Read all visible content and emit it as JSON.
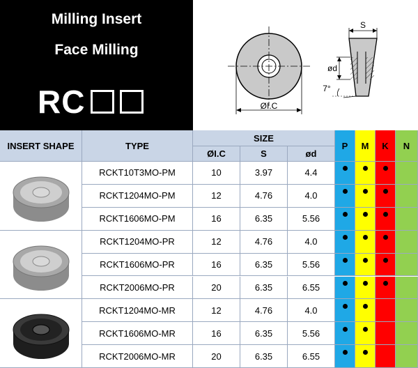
{
  "header": {
    "title_line1": "Milling Insert",
    "title_line2": "Face Milling",
    "code": "RC",
    "drawing_labels": {
      "thickness": "S",
      "hole_diameter": "ød",
      "angle": "7°",
      "ic_diameter": "ØI.C"
    }
  },
  "table": {
    "headers": {
      "insert_shape": "INSERT SHAPE",
      "type": "TYPE",
      "size": "SIZE",
      "ic": "ØI.C",
      "s": "S",
      "d": "ød",
      "p": "P",
      "m": "M",
      "k": "K",
      "n": "N"
    },
    "material_colors": {
      "p": "#1fa8e6",
      "m": "#ffff00",
      "k": "#ff0000",
      "n": "#92d050"
    },
    "groups": [
      {
        "shape_icon": "rckt-pm-insert-image",
        "variant": "light"
      },
      {
        "shape_icon": "rckt-pr-insert-image",
        "variant": "light"
      },
      {
        "shape_icon": "rckt-mr-insert-image",
        "variant": "dark"
      }
    ],
    "rows": [
      {
        "type": "RCKT10T3MO-PM",
        "ic": "10",
        "s": "3.97",
        "d": "4.4",
        "p": true,
        "m": true,
        "k": true,
        "n": false
      },
      {
        "type": "RCKT1204MO-PM",
        "ic": "12",
        "s": "4.76",
        "d": "4.0",
        "p": true,
        "m": true,
        "k": true,
        "n": false
      },
      {
        "type": "RCKT1606MO-PM",
        "ic": "16",
        "s": "6.35",
        "d": "5.56",
        "p": true,
        "m": true,
        "k": true,
        "n": false
      },
      {
        "type": "RCKT1204MO-PR",
        "ic": "12",
        "s": "4.76",
        "d": "4.0",
        "p": true,
        "m": true,
        "k": true,
        "n": false
      },
      {
        "type": "RCKT1606MO-PR",
        "ic": "16",
        "s": "6.35",
        "d": "5.56",
        "p": true,
        "m": true,
        "k": true,
        "n": false
      },
      {
        "type": "RCKT2006MO-PR",
        "ic": "20",
        "s": "6.35",
        "d": "6.55",
        "p": true,
        "m": true,
        "k": true,
        "n": false
      },
      {
        "type": "RCKT1204MO-MR",
        "ic": "12",
        "s": "4.76",
        "d": "4.0",
        "p": true,
        "m": true,
        "k": false,
        "n": false
      },
      {
        "type": "RCKT1606MO-MR",
        "ic": "16",
        "s": "6.35",
        "d": "5.56",
        "p": true,
        "m": true,
        "k": false,
        "n": false
      },
      {
        "type": "RCKT2006MO-MR",
        "ic": "20",
        "s": "6.35",
        "d": "6.55",
        "p": true,
        "m": true,
        "k": false,
        "n": false
      }
    ]
  }
}
